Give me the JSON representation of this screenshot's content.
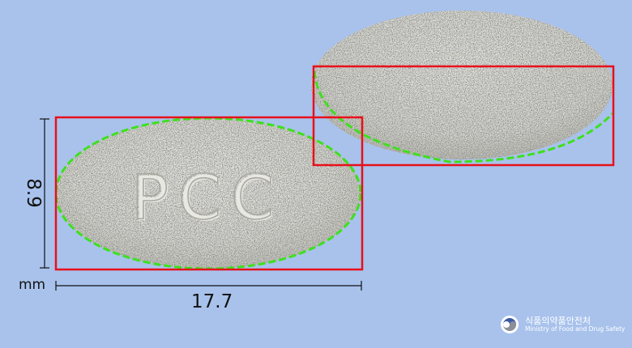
{
  "subject": {
    "front_imprint": "PCC"
  },
  "dimensions": {
    "unit": "mm",
    "length": "17.7",
    "width": "8.9"
  },
  "brand": {
    "name_ko": "식품의약품안전처",
    "name_en": "Ministry of Food and Drug Safety"
  },
  "colors": {
    "background": "#a8c2ec",
    "tablet": "#d9d9d2",
    "bounding_box": "#e8101a",
    "outline_fit": "#3ee01e",
    "dimension_lines": "#111111"
  }
}
